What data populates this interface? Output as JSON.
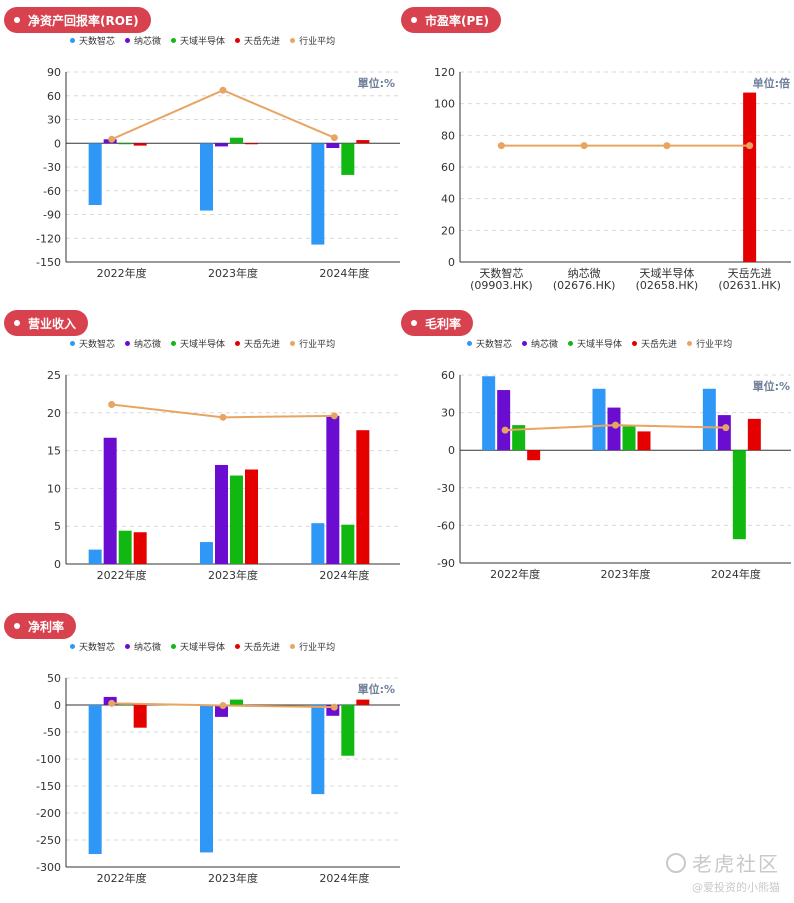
{
  "chart_data": [
    {
      "id": "roe",
      "type": "bar",
      "title": "净资产回报率(ROE)",
      "unit_label": "單位:%",
      "categories": [
        "2022年度",
        "2023年度",
        "2024年度"
      ],
      "ylim": [
        -150,
        90
      ],
      "yticks": [
        90,
        60,
        30,
        0,
        -30,
        -60,
        -90,
        -120,
        -150
      ],
      "grid": true,
      "legend": "top",
      "series": [
        {
          "name": "天数智芯",
          "color": "#2f97f5",
          "values": [
            -78,
            -85,
            -128
          ]
        },
        {
          "name": "纳芯微",
          "color": "#6a0dd1",
          "values": [
            5,
            -4,
            -6
          ]
        },
        {
          "name": "天域半导体",
          "color": "#11b811",
          "values": [
            0,
            7,
            -40
          ]
        },
        {
          "name": "天岳先进",
          "color": "#e50000",
          "values": [
            -3,
            -1,
            4
          ]
        },
        {
          "name": "行业平均",
          "type": "line",
          "color": "#e8a562",
          "values": [
            5,
            67,
            7
          ]
        }
      ]
    },
    {
      "id": "pe",
      "type": "bar",
      "title": "市盈率(PE)",
      "unit_label": "单位:倍",
      "categories": [
        "天数智芯\n(09903.HK)",
        "纳芯微\n(02676.HK)",
        "天域半导体\n(02658.HK)",
        "天岳先进\n(02631.HK)"
      ],
      "ylim": [
        0,
        120
      ],
      "yticks": [
        120,
        100,
        80,
        60,
        40,
        20,
        0
      ],
      "grid": true,
      "series": [
        {
          "name": "市盈率",
          "color": "#e50000",
          "values": [
            0,
            0,
            0,
            107
          ]
        },
        {
          "name": "行业平均",
          "type": "line",
          "color": "#e8a562",
          "values": [
            73.5,
            73.5,
            73.5,
            73.5
          ]
        }
      ]
    },
    {
      "id": "revenue",
      "type": "bar",
      "title": "营业收入",
      "unit_label": "",
      "categories": [
        "2022年度",
        "2023年度",
        "2024年度"
      ],
      "ylim": [
        0,
        25
      ],
      "yticks": [
        25,
        20,
        15,
        10,
        5,
        0
      ],
      "grid": true,
      "legend": "top",
      "series": [
        {
          "name": "天数智芯",
          "color": "#2f97f5",
          "values": [
            1.9,
            2.9,
            5.4
          ]
        },
        {
          "name": "纳芯微",
          "color": "#6a0dd1",
          "values": [
            16.7,
            13.1,
            19.6
          ]
        },
        {
          "name": "天域半导体",
          "color": "#11b811",
          "values": [
            4.4,
            11.7,
            5.2
          ]
        },
        {
          "name": "天岳先进",
          "color": "#e50000",
          "values": [
            4.2,
            12.5,
            17.7
          ]
        },
        {
          "name": "行业平均",
          "type": "line",
          "color": "#e8a562",
          "values": [
            21.1,
            19.4,
            19.6
          ]
        }
      ]
    },
    {
      "id": "gross_margin",
      "type": "bar",
      "title": "毛利率",
      "unit_label": "單位:%",
      "categories": [
        "2022年度",
        "2023年度",
        "2024年度"
      ],
      "ylim": [
        -90,
        60
      ],
      "yticks": [
        60,
        30,
        0,
        -30,
        -60,
        -90
      ],
      "grid": true,
      "legend": "top",
      "series": [
        {
          "name": "天数智芯",
          "color": "#2f97f5",
          "values": [
            59,
            49,
            49
          ]
        },
        {
          "name": "纳芯微",
          "color": "#6a0dd1",
          "values": [
            48,
            34,
            28
          ]
        },
        {
          "name": "天域半导体",
          "color": "#11b811",
          "values": [
            20,
            19,
            -71
          ]
        },
        {
          "name": "天岳先进",
          "color": "#e50000",
          "values": [
            -8,
            15,
            25
          ]
        },
        {
          "name": "行业平均",
          "type": "line",
          "color": "#e8a562",
          "values": [
            16,
            20,
            18
          ]
        }
      ]
    },
    {
      "id": "net_margin",
      "type": "bar",
      "title": "净利率",
      "unit_label": "單位:%",
      "categories": [
        "2022年度",
        "2023年度",
        "2024年度"
      ],
      "ylim": [
        -300,
        50
      ],
      "yticks": [
        50,
        0,
        -50,
        -100,
        -150,
        -200,
        -250,
        -300
      ],
      "grid": true,
      "legend": "top",
      "series": [
        {
          "name": "天数智芯",
          "color": "#2f97f5",
          "values": [
            -276,
            -273,
            -165
          ]
        },
        {
          "name": "纳芯微",
          "color": "#6a0dd1",
          "values": [
            15,
            -22,
            -20
          ]
        },
        {
          "name": "天域半导体",
          "color": "#11b811",
          "values": [
            4,
            10,
            -94
          ]
        },
        {
          "name": "天岳先进",
          "color": "#e50000",
          "values": [
            -42,
            -3,
            10
          ]
        },
        {
          "name": "行业平均",
          "type": "line",
          "color": "#e8a562",
          "values": [
            3,
            -1,
            -4
          ]
        }
      ]
    }
  ],
  "watermark": {
    "brand": "老虎社区",
    "handle": "@爱投资的小熊猫"
  }
}
